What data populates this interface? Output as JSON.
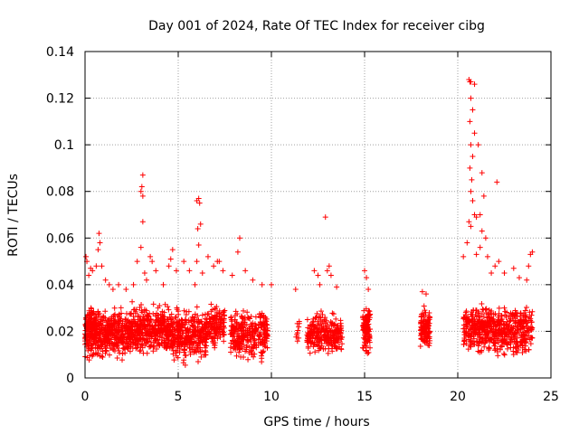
{
  "chart_data": {
    "type": "scatter",
    "title": "Day 001 of 2024, Rate Of TEC Index for receiver cibg",
    "xlabel": "GPS time / hours",
    "ylabel": "ROTI / TECUs",
    "xlim": [
      0,
      25
    ],
    "ylim": [
      0,
      0.14
    ],
    "x_ticks": [
      0,
      5,
      10,
      15,
      20,
      25
    ],
    "y_ticks": [
      0,
      0.02,
      0.04,
      0.06,
      0.08,
      0.1,
      0.12,
      0.14
    ],
    "x_tick_labels": [
      "0",
      "5",
      "10",
      "15",
      "20",
      "25"
    ],
    "y_tick_labels": [
      "0",
      "0.02",
      "0.04",
      "0.06",
      "0.08",
      "0.1",
      "0.12",
      "0.14"
    ],
    "grid": true,
    "marker": "+",
    "color": "#ff0000",
    "series": [
      {
        "name": "ROTI",
        "clusters": [
          {
            "x_range": [
              0.0,
              0.6
            ],
            "y_range": [
              0.006,
              0.034
            ],
            "count": 180
          },
          {
            "x_range": [
              0.6,
              2.4
            ],
            "y_range": [
              0.006,
              0.032
            ],
            "count": 360
          },
          {
            "x_range": [
              2.4,
              4.6
            ],
            "y_range": [
              0.008,
              0.034
            ],
            "count": 380
          },
          {
            "x_range": [
              4.6,
              6.5
            ],
            "y_range": [
              0.004,
              0.032
            ],
            "count": 340
          },
          {
            "x_range": [
              6.5,
              7.5
            ],
            "y_range": [
              0.01,
              0.034
            ],
            "count": 140
          },
          {
            "x_range": [
              7.8,
              9.2
            ],
            "y_range": [
              0.005,
              0.032
            ],
            "count": 220
          },
          {
            "x_range": [
              9.3,
              9.8
            ],
            "y_range": [
              0.006,
              0.034
            ],
            "count": 90
          },
          {
            "x_range": [
              11.3,
              11.5
            ],
            "y_range": [
              0.012,
              0.026
            ],
            "count": 10
          },
          {
            "x_range": [
              11.9,
              13.8
            ],
            "y_range": [
              0.008,
              0.03
            ],
            "count": 260
          },
          {
            "x_range": [
              14.9,
              15.3
            ],
            "y_range": [
              0.008,
              0.034
            ],
            "count": 120
          },
          {
            "x_range": [
              18.0,
              18.5
            ],
            "y_range": [
              0.01,
              0.032
            ],
            "count": 120
          },
          {
            "x_range": [
              20.3,
              21.5
            ],
            "y_range": [
              0.008,
              0.034
            ],
            "count": 200
          },
          {
            "x_range": [
              21.5,
              24.0
            ],
            "y_range": [
              0.007,
              0.034
            ],
            "count": 380
          }
        ],
        "outliers": [
          [
            0.05,
            0.052
          ],
          [
            0.1,
            0.05
          ],
          [
            0.3,
            0.047
          ],
          [
            0.4,
            0.046
          ],
          [
            0.6,
            0.048
          ],
          [
            0.7,
            0.055
          ],
          [
            0.75,
            0.062
          ],
          [
            0.8,
            0.058
          ],
          [
            0.9,
            0.048
          ],
          [
            0.2,
            0.044
          ],
          [
            1.1,
            0.042
          ],
          [
            1.3,
            0.04
          ],
          [
            1.5,
            0.038
          ],
          [
            1.8,
            0.04
          ],
          [
            2.2,
            0.038
          ],
          [
            2.6,
            0.04
          ],
          [
            2.8,
            0.05
          ],
          [
            3.0,
            0.056
          ],
          [
            3.0,
            0.08
          ],
          [
            3.05,
            0.082
          ],
          [
            3.1,
            0.087
          ],
          [
            3.1,
            0.078
          ],
          [
            3.1,
            0.067
          ],
          [
            3.2,
            0.045
          ],
          [
            3.3,
            0.042
          ],
          [
            3.5,
            0.052
          ],
          [
            3.6,
            0.05
          ],
          [
            3.8,
            0.046
          ],
          [
            4.2,
            0.04
          ],
          [
            4.5,
            0.048
          ],
          [
            4.6,
            0.051
          ],
          [
            4.7,
            0.055
          ],
          [
            4.9,
            0.046
          ],
          [
            5.3,
            0.05
          ],
          [
            5.6,
            0.046
          ],
          [
            5.9,
            0.04
          ],
          [
            6.0,
            0.05
          ],
          [
            6.0,
            0.076
          ],
          [
            6.1,
            0.077
          ],
          [
            6.15,
            0.075
          ],
          [
            6.2,
            0.066
          ],
          [
            6.1,
            0.057
          ],
          [
            6.05,
            0.064
          ],
          [
            6.3,
            0.045
          ],
          [
            6.6,
            0.052
          ],
          [
            6.9,
            0.048
          ],
          [
            7.1,
            0.05
          ],
          [
            7.2,
            0.05
          ],
          [
            7.4,
            0.046
          ],
          [
            7.9,
            0.044
          ],
          [
            8.2,
            0.054
          ],
          [
            8.3,
            0.06
          ],
          [
            8.6,
            0.046
          ],
          [
            9.0,
            0.042
          ],
          [
            9.5,
            0.04
          ],
          [
            10.0,
            0.04
          ],
          [
            11.3,
            0.038
          ],
          [
            12.3,
            0.046
          ],
          [
            12.5,
            0.044
          ],
          [
            12.6,
            0.04
          ],
          [
            12.9,
            0.069
          ],
          [
            13.0,
            0.046
          ],
          [
            13.1,
            0.048
          ],
          [
            13.2,
            0.044
          ],
          [
            13.5,
            0.039
          ],
          [
            15.0,
            0.046
          ],
          [
            15.1,
            0.043
          ],
          [
            15.2,
            0.038
          ],
          [
            18.1,
            0.037
          ],
          [
            18.3,
            0.036
          ],
          [
            20.3,
            0.052
          ],
          [
            20.5,
            0.058
          ],
          [
            20.6,
            0.128
          ],
          [
            20.65,
            0.127
          ],
          [
            20.7,
            0.127
          ],
          [
            20.9,
            0.126
          ],
          [
            20.7,
            0.12
          ],
          [
            20.8,
            0.115
          ],
          [
            20.65,
            0.11
          ],
          [
            20.9,
            0.105
          ],
          [
            20.7,
            0.1
          ],
          [
            20.8,
            0.095
          ],
          [
            20.65,
            0.09
          ],
          [
            20.75,
            0.085
          ],
          [
            20.7,
            0.08
          ],
          [
            20.8,
            0.076
          ],
          [
            20.9,
            0.07
          ],
          [
            20.6,
            0.067
          ],
          [
            20.7,
            0.065
          ],
          [
            21.0,
            0.069
          ],
          [
            21.2,
            0.07
          ],
          [
            21.4,
            0.078
          ],
          [
            21.3,
            0.088
          ],
          [
            21.1,
            0.1
          ],
          [
            21.3,
            0.063
          ],
          [
            21.5,
            0.06
          ],
          [
            21.2,
            0.056
          ],
          [
            21.0,
            0.053
          ],
          [
            21.6,
            0.052
          ],
          [
            21.8,
            0.045
          ],
          [
            22.1,
            0.084
          ],
          [
            22.2,
            0.05
          ],
          [
            22.0,
            0.048
          ],
          [
            22.5,
            0.045
          ],
          [
            23.0,
            0.047
          ],
          [
            23.3,
            0.043
          ],
          [
            23.8,
            0.048
          ],
          [
            23.9,
            0.053
          ],
          [
            24.0,
            0.054
          ],
          [
            23.7,
            0.042
          ]
        ]
      }
    ]
  }
}
